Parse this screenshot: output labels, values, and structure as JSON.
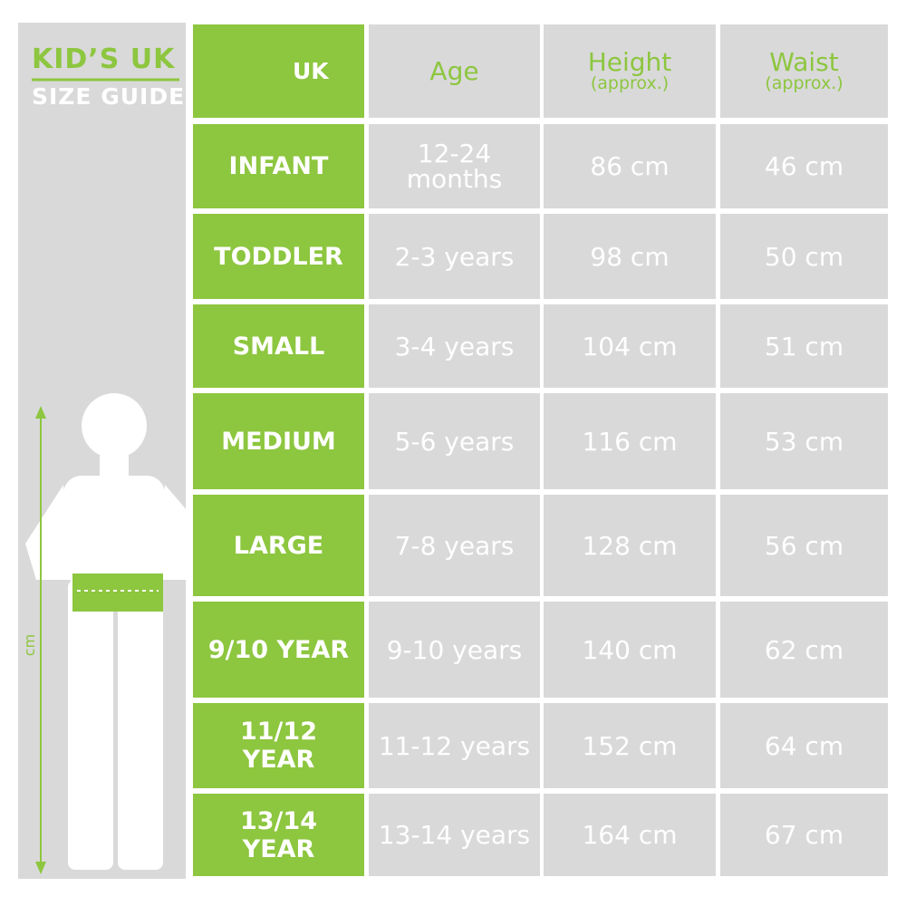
{
  "header": {
    "title": "KID’S UK",
    "subtitle": "SIZE GUIDE",
    "axis_label": "cm"
  },
  "table": {
    "columns": [
      {
        "label": "UK"
      },
      {
        "label": "Age"
      },
      {
        "label": "Height",
        "note": "(approx.)"
      },
      {
        "label": "Waist",
        "note": "(approx.)"
      }
    ],
    "rows": [
      [
        "INFANT",
        "12-24 months",
        "86 cm",
        "46 cm"
      ],
      [
        "TODDLER",
        "2-3 years",
        "98 cm",
        "50 cm"
      ],
      [
        "SMALL",
        "3-4 years",
        "104 cm",
        "51 cm"
      ],
      [
        "MEDIUM",
        "5-6 years",
        "116 cm",
        "53 cm"
      ],
      [
        "LARGE",
        "7-8 years",
        "128 cm",
        "56 cm"
      ],
      [
        "9/10 YEAR",
        "9-10 years",
        "140 cm",
        "62 cm"
      ],
      [
        "11/12 YEAR",
        "11-12 years",
        "152 cm",
        "64 cm"
      ],
      [
        "13/14 YEAR",
        "13-14 years",
        "164 cm",
        "67 cm"
      ]
    ]
  }
}
